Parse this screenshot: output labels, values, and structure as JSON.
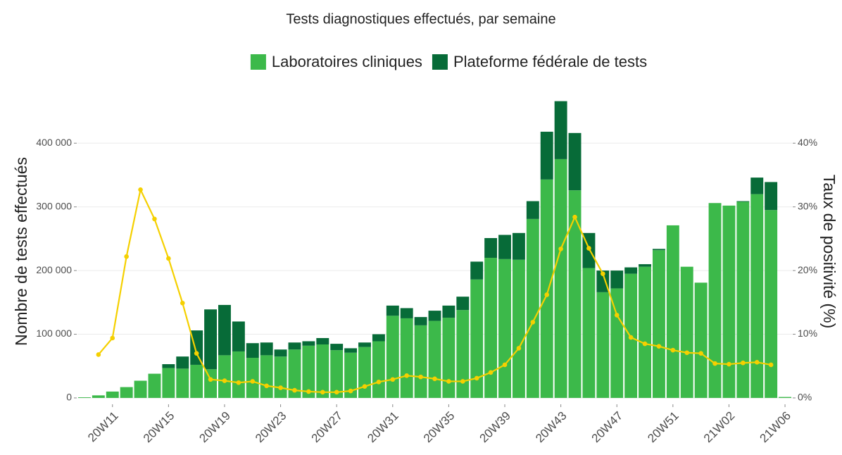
{
  "chart_data": {
    "type": "bar",
    "title": "Tests diagnostiques effectués, par semaine",
    "y_label": "Nombre de tests effectués",
    "y2_label": "Taux de positivité (%)",
    "categories": [
      null,
      null,
      "20W11",
      null,
      null,
      null,
      "20W15",
      null,
      null,
      null,
      "20W19",
      null,
      null,
      null,
      "20W23",
      null,
      null,
      null,
      "20W27",
      null,
      null,
      null,
      "20W31",
      null,
      null,
      null,
      "20W35",
      null,
      null,
      null,
      "20W39",
      null,
      null,
      null,
      "20W43",
      null,
      null,
      null,
      "20W47",
      null,
      null,
      null,
      "20W51",
      null,
      null,
      null,
      "21W02",
      null,
      null,
      null,
      "21W06"
    ],
    "series": [
      {
        "name": "Laboratoires cliniques",
        "color": "#3cb94a",
        "values": [
          1000,
          4000,
          10000,
          17000,
          27000,
          38000,
          47000,
          46000,
          52000,
          45000,
          67000,
          73000,
          63000,
          67000,
          65000,
          76000,
          82000,
          84000,
          75000,
          71000,
          80000,
          89000,
          129000,
          125000,
          114000,
          121000,
          126000,
          138000,
          186000,
          220000,
          218000,
          217000,
          281000,
          343000,
          375000,
          326000,
          204000,
          166000,
          172000,
          195000,
          206000,
          232000,
          271000,
          206000,
          181000,
          306000,
          302000,
          308000,
          320000,
          295000,
          1500
        ]
      },
      {
        "name": "Plateforme fédérale de tests",
        "color": "#076b38",
        "values": [
          0,
          0,
          0,
          0,
          0,
          0,
          6000,
          19000,
          54000,
          94000,
          79000,
          47000,
          23000,
          20000,
          11000,
          11000,
          7000,
          10000,
          10000,
          7000,
          7000,
          11000,
          16000,
          16000,
          13000,
          16000,
          19000,
          21000,
          28000,
          31000,
          38000,
          42000,
          28000,
          75000,
          91000,
          90000,
          55000,
          34000,
          28000,
          10000,
          4000,
          2000,
          0,
          0,
          0,
          0,
          0,
          1000,
          26000,
          44000,
          0
        ]
      },
      {
        "name": "Taux de positivité",
        "type": "line",
        "axis": "y2",
        "color": "#f5d000",
        "values": [
          null,
          6.8,
          9.4,
          22.2,
          32.7,
          28.1,
          21.9,
          14.9,
          7.0,
          2.9,
          2.7,
          2.4,
          2.6,
          1.9,
          1.6,
          1.2,
          1.0,
          0.9,
          0.9,
          1.1,
          1.8,
          2.5,
          2.9,
          3.5,
          3.3,
          3.0,
          2.6,
          2.6,
          3.1,
          4.0,
          5.2,
          7.8,
          11.9,
          16.2,
          23.4,
          28.4,
          23.5,
          19.5,
          13.0,
          9.5,
          8.5,
          8.1,
          7.5,
          7.1,
          7.0,
          5.4,
          5.3,
          5.5,
          5.6,
          5.2,
          null
        ]
      }
    ],
    "ylim": [
      -10000,
      470000
    ],
    "yticks": [
      0,
      {
        "value": 100000,
        "label": "100 000"
      },
      {
        "value": 200000,
        "label": "200 000"
      },
      {
        "value": 300000,
        "label": "300 000"
      },
      {
        "value": 400000,
        "label": "400 000"
      }
    ],
    "y2lim": [
      -1,
      47
    ],
    "y2ticks": [
      {
        "value": 0,
        "label": "0%"
      },
      {
        "value": 10,
        "label": "10%"
      },
      {
        "value": 20,
        "label": "20%"
      },
      {
        "value": 30,
        "label": "30%"
      },
      {
        "value": 40,
        "label": "40%"
      }
    ],
    "grid": true,
    "legend": "top"
  }
}
